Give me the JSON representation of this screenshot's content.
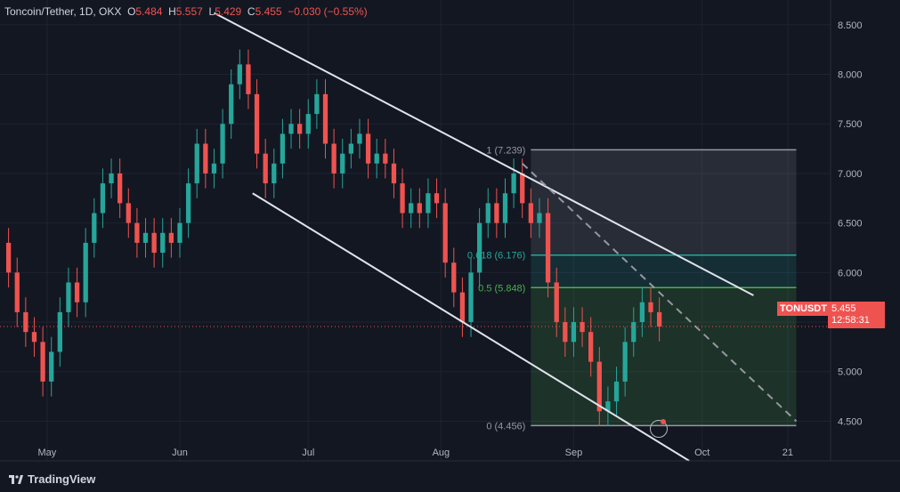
{
  "header": {
    "symbol": "Toncoin/Tether, 1D, OKX",
    "o_label": "O",
    "o": "5.484",
    "h_label": "H",
    "h": "5.557",
    "l_label": "L",
    "l": "5.429",
    "c_label": "C",
    "c": "5.455",
    "change": "−0.030 (−0.55%)"
  },
  "ticker": {
    "symbol": "TONUSDT",
    "price": "5.455",
    "countdown": "12:58:31"
  },
  "brand": "TradingView",
  "colors": {
    "up": "#26a69a",
    "down": "#ef5350",
    "bg": "#131722",
    "grid": "#1f2330",
    "text": "#b2b5be"
  },
  "chart_data": {
    "type": "candlestick",
    "x_axis": {
      "start": "2024-04-20",
      "end": "2024-10-31",
      "tick_labels": [
        {
          "label": "May",
          "date": "2024-05-01"
        },
        {
          "label": "Jun",
          "date": "2024-06-01"
        },
        {
          "label": "Jul",
          "date": "2024-07-01"
        },
        {
          "label": "Aug",
          "date": "2024-08-01"
        },
        {
          "label": "Sep",
          "date": "2024-09-01"
        },
        {
          "label": "Oct",
          "date": "2024-10-01"
        },
        {
          "label": "21",
          "date": "2024-10-21"
        }
      ]
    },
    "y_axis": {
      "ylim": [
        4.1,
        8.75
      ],
      "ticks": [
        "4.500",
        "5.000",
        "5.500",
        "6.000",
        "6.500",
        "7.000",
        "7.500",
        "8.000",
        "8.500"
      ]
    },
    "close_series": [
      [
        "2024-04-20",
        6.3
      ],
      [
        "2024-04-22",
        6.0
      ],
      [
        "2024-04-24",
        5.6
      ],
      [
        "2024-04-26",
        5.4
      ],
      [
        "2024-04-28",
        5.3
      ],
      [
        "2024-04-30",
        4.9
      ],
      [
        "2024-05-02",
        5.2
      ],
      [
        "2024-05-04",
        5.6
      ],
      [
        "2024-05-06",
        5.9
      ],
      [
        "2024-05-08",
        5.7
      ],
      [
        "2024-05-10",
        6.3
      ],
      [
        "2024-05-12",
        6.6
      ],
      [
        "2024-05-14",
        6.9
      ],
      [
        "2024-05-16",
        7.0
      ],
      [
        "2024-05-18",
        6.7
      ],
      [
        "2024-05-20",
        6.5
      ],
      [
        "2024-05-22",
        6.3
      ],
      [
        "2024-05-24",
        6.4
      ],
      [
        "2024-05-26",
        6.2
      ],
      [
        "2024-05-28",
        6.4
      ],
      [
        "2024-05-30",
        6.3
      ],
      [
        "2024-06-01",
        6.5
      ],
      [
        "2024-06-03",
        6.9
      ],
      [
        "2024-06-05",
        7.3
      ],
      [
        "2024-06-07",
        7.0
      ],
      [
        "2024-06-09",
        7.1
      ],
      [
        "2024-06-11",
        7.5
      ],
      [
        "2024-06-13",
        7.9
      ],
      [
        "2024-06-15",
        8.1
      ],
      [
        "2024-06-17",
        7.8
      ],
      [
        "2024-06-19",
        7.2
      ],
      [
        "2024-06-21",
        6.9
      ],
      [
        "2024-06-23",
        7.1
      ],
      [
        "2024-06-25",
        7.4
      ],
      [
        "2024-06-27",
        7.5
      ],
      [
        "2024-06-29",
        7.4
      ],
      [
        "2024-07-01",
        7.6
      ],
      [
        "2024-07-03",
        7.8
      ],
      [
        "2024-07-05",
        7.3
      ],
      [
        "2024-07-07",
        7.0
      ],
      [
        "2024-07-09",
        7.2
      ],
      [
        "2024-07-11",
        7.3
      ],
      [
        "2024-07-13",
        7.4
      ],
      [
        "2024-07-15",
        7.1
      ],
      [
        "2024-07-17",
        7.2
      ],
      [
        "2024-07-19",
        7.1
      ],
      [
        "2024-07-21",
        6.9
      ],
      [
        "2024-07-23",
        6.6
      ],
      [
        "2024-07-25",
        6.7
      ],
      [
        "2024-07-27",
        6.6
      ],
      [
        "2024-07-29",
        6.8
      ],
      [
        "2024-07-31",
        6.7
      ],
      [
        "2024-08-02",
        6.1
      ],
      [
        "2024-08-04",
        5.8
      ],
      [
        "2024-08-06",
        5.5
      ],
      [
        "2024-08-08",
        6.0
      ],
      [
        "2024-08-10",
        6.5
      ],
      [
        "2024-08-12",
        6.7
      ],
      [
        "2024-08-14",
        6.5
      ],
      [
        "2024-08-16",
        6.8
      ],
      [
        "2024-08-18",
        7.0
      ],
      [
        "2024-08-20",
        6.7
      ],
      [
        "2024-08-22",
        6.5
      ],
      [
        "2024-08-24",
        6.6
      ],
      [
        "2024-08-26",
        5.9
      ],
      [
        "2024-08-28",
        5.5
      ],
      [
        "2024-08-30",
        5.3
      ],
      [
        "2024-09-01",
        5.5
      ],
      [
        "2024-09-03",
        5.4
      ],
      [
        "2024-09-05",
        5.1
      ],
      [
        "2024-09-07",
        4.6
      ],
      [
        "2024-09-09",
        4.7
      ],
      [
        "2024-09-11",
        4.9
      ],
      [
        "2024-09-13",
        5.3
      ],
      [
        "2024-09-15",
        5.5
      ],
      [
        "2024-09-17",
        5.7
      ],
      [
        "2024-09-19",
        5.6
      ],
      [
        "2024-09-21",
        5.455
      ]
    ],
    "channel": {
      "upper": {
        "from": [
          "2024-06-09",
          8.62
        ],
        "to": [
          "2024-10-13",
          5.77
        ]
      },
      "lower": {
        "from": [
          "2024-06-18",
          6.8
        ],
        "to": [
          "2024-09-28",
          4.1
        ]
      },
      "mid_dashed": {
        "from": [
          "2024-08-20",
          7.1
        ],
        "to": [
          "2024-10-23",
          4.5
        ]
      }
    },
    "fibonacci": {
      "from_date": "2024-08-22",
      "to_date": "2024-10-23",
      "levels": [
        {
          "label": "1 (7.239)",
          "price": 7.239
        },
        {
          "label": "0.618 (6.176)",
          "price": 6.176
        },
        {
          "label": "0.5 (5.848)",
          "price": 5.848
        },
        {
          "label": "0 (4.456)",
          "price": 4.456
        }
      ]
    },
    "last_price": 5.455
  }
}
